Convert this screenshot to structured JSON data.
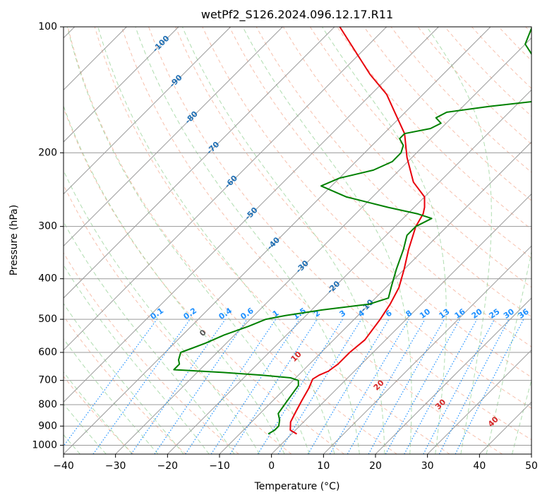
{
  "chart_data": {
    "type": "line",
    "title": "wetPf2_S126.2024.096.12.17.R11",
    "xlabel": "Temperature (°C)",
    "ylabel": "Pressure (hPa)",
    "xlim": [
      -40,
      50
    ],
    "ylim": [
      1050,
      100
    ],
    "y_scale": "log",
    "grid": true,
    "x_ticks": [
      "−40",
      "−30",
      "−20",
      "−10",
      "0",
      "10",
      "20",
      "30",
      "40",
      "50"
    ],
    "x_tick_values": [
      -40,
      -30,
      -20,
      -10,
      0,
      10,
      20,
      30,
      40,
      50
    ],
    "y_ticks": [
      "100",
      "200",
      "300",
      "400",
      "500",
      "600",
      "700",
      "800",
      "900",
      "1000"
    ],
    "y_tick_values": [
      100,
      200,
      300,
      400,
      500,
      600,
      700,
      800,
      900,
      1000
    ],
    "series": [
      {
        "color": "#e8000b",
        "role": "temperature",
        "points": [
          [
            1,
            940
          ],
          [
            -1,
            920
          ],
          [
            -2.5,
            880
          ],
          [
            -3.5,
            830
          ],
          [
            -4.5,
            780
          ],
          [
            -5.5,
            730
          ],
          [
            -6.5,
            695
          ],
          [
            -6,
            680
          ],
          [
            -5,
            665
          ],
          [
            -4.5,
            640
          ],
          [
            -4.5,
            600
          ],
          [
            -4,
            560
          ],
          [
            -5,
            500
          ],
          [
            -6,
            460
          ],
          [
            -7.5,
            420
          ],
          [
            -10,
            380
          ],
          [
            -13,
            340
          ],
          [
            -16,
            300
          ],
          [
            -17,
            280
          ],
          [
            -18,
            270
          ],
          [
            -20,
            255
          ],
          [
            -25,
            235
          ],
          [
            -31,
            205
          ],
          [
            -36,
            180
          ],
          [
            -42,
            160
          ],
          [
            -47,
            145
          ],
          [
            -54,
            130
          ],
          [
            -61,
            115
          ],
          [
            -69,
            100
          ]
        ]
      },
      {
        "color": "#008000",
        "role": "dewpoint",
        "points": [
          [
            -4.5,
            940
          ],
          [
            -4,
            920
          ],
          [
            -4,
            900
          ],
          [
            -5,
            870
          ],
          [
            -6.5,
            840
          ],
          [
            -7,
            800
          ],
          [
            -7.5,
            760
          ],
          [
            -8,
            720
          ],
          [
            -9,
            700
          ],
          [
            -11,
            690
          ],
          [
            -17,
            680
          ],
          [
            -25,
            670
          ],
          [
            -35,
            660
          ],
          [
            -35,
            640
          ],
          [
            -36,
            625
          ],
          [
            -37,
            600
          ],
          [
            -35.5,
            585
          ],
          [
            -34,
            570
          ],
          [
            -32,
            545
          ],
          [
            -29,
            520
          ],
          [
            -27,
            500
          ],
          [
            -24,
            490
          ],
          [
            -18,
            475
          ],
          [
            -10,
            460
          ],
          [
            -7.5,
            445
          ],
          [
            -9,
            420
          ],
          [
            -11.5,
            380
          ],
          [
            -14,
            340
          ],
          [
            -16,
            315
          ],
          [
            -16,
            300
          ],
          [
            -14.5,
            287
          ],
          [
            -18,
            280
          ],
          [
            -25,
            270
          ],
          [
            -35,
            255
          ],
          [
            -42,
            240
          ],
          [
            -40,
            230
          ],
          [
            -35,
            220
          ],
          [
            -33,
            210
          ],
          [
            -33,
            200
          ],
          [
            -34,
            192
          ],
          [
            -36,
            185
          ],
          [
            -36,
            180
          ],
          [
            -32,
            175
          ],
          [
            -31,
            170
          ],
          [
            -33,
            165
          ],
          [
            -32,
            160
          ],
          [
            -25,
            155
          ],
          [
            -16,
            150
          ],
          [
            -15,
            145
          ],
          [
            -18,
            140
          ],
          [
            -22,
            130
          ],
          [
            -25,
            120
          ],
          [
            -30,
            110
          ],
          [
            -32,
            100
          ]
        ]
      }
    ],
    "isohumes": {
      "color": "#1e90ff",
      "labels": [
        "0.1",
        "0.2",
        "0.4",
        "0.6",
        "1",
        "1.5",
        "2",
        "3",
        "4",
        "6",
        "8",
        "10",
        "13",
        "16",
        "20",
        "25",
        "30",
        "36"
      ],
      "values": [
        0.1,
        0.2,
        0.4,
        0.6,
        1,
        1.5,
        2,
        3,
        4,
        6,
        8,
        10,
        13,
        16,
        20,
        25,
        30,
        36
      ]
    },
    "isotherm_labels": [
      {
        "text": "-100",
        "value": -100,
        "p": 110
      },
      {
        "text": "-90",
        "value": -90,
        "p": 135
      },
      {
        "text": "-80",
        "value": -80,
        "p": 165
      },
      {
        "text": "-70",
        "value": -70,
        "p": 195
      },
      {
        "text": "-60",
        "value": -60,
        "p": 235
      },
      {
        "text": "-50",
        "value": -50,
        "p": 280
      },
      {
        "text": "-40",
        "value": -40,
        "p": 330
      },
      {
        "text": "-30",
        "value": -30,
        "p": 375
      },
      {
        "text": "-20",
        "value": -20,
        "p": 420
      },
      {
        "text": "-10",
        "value": -10,
        "p": 465
      }
    ],
    "isotherm_label_color": "#1f6fb4",
    "moist_adiabat_labels": [
      {
        "text": "0",
        "value": 0,
        "p": 540,
        "color": "#555555"
      },
      {
        "text": "10",
        "value": 10,
        "p": 615,
        "color": "#d62728"
      },
      {
        "text": "20",
        "value": 20,
        "p": 720,
        "color": "#d62728"
      },
      {
        "text": "30",
        "value": 30,
        "p": 800,
        "color": "#d62728"
      },
      {
        "text": "40",
        "value": 40,
        "p": 880,
        "color": "#d62728"
      }
    ],
    "colors": {
      "isotherm": "#9a9a9a",
      "dry_adiabat": "#f4a58a",
      "moist_adiabat": "#8fcf8f",
      "isohume": "#1e90ff"
    }
  }
}
